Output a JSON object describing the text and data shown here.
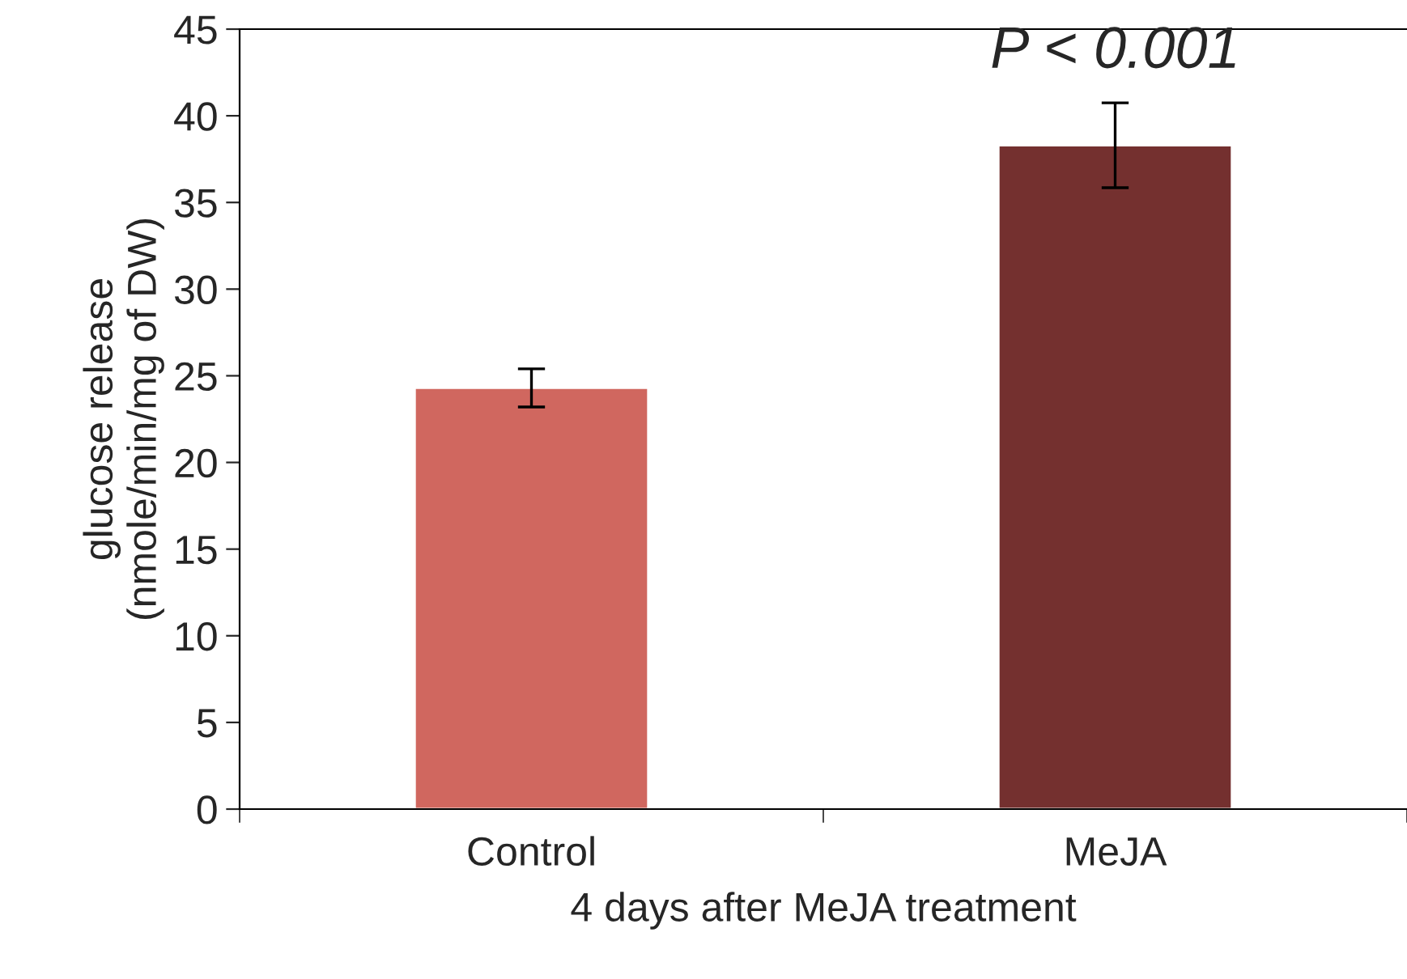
{
  "chart_data": {
    "type": "bar",
    "xlabel": "4 days after MeJA treatment",
    "ylabel": "glucose release\n(nmole/min/mg of DW)",
    "categories": [
      "Control",
      "MeJA"
    ],
    "values": [
      24.3,
      38.3
    ],
    "errors": [
      1.1,
      2.45
    ],
    "colors": [
      "#d0675f",
      "#74302f"
    ],
    "ylim": [
      0,
      45
    ],
    "yticks": [
      0,
      5,
      10,
      15,
      20,
      25,
      30,
      35,
      40,
      45
    ],
    "grid": false,
    "annotations": [
      "P < 0.001"
    ]
  }
}
